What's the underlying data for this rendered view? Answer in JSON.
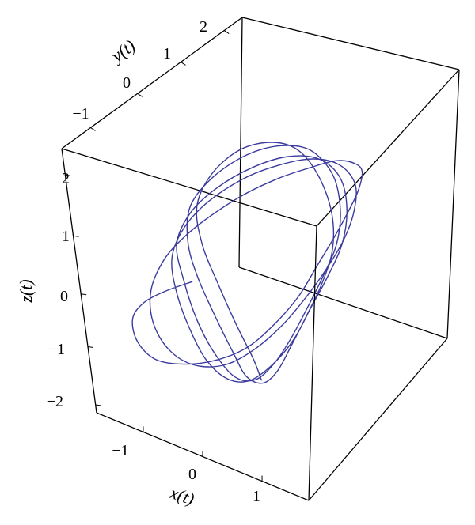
{
  "chart_data": {
    "type": "line",
    "projection": "3d",
    "title": "",
    "xlabel": "x(t)",
    "ylabel": "y(t)",
    "zlabel": "z(t)",
    "xlim": [
      -2,
      2
    ],
    "ylim": [
      -1.5,
      2.5
    ],
    "zlim": [
      -2.3,
      2.5
    ],
    "x_ticks": [
      "−1",
      "0",
      "1"
    ],
    "y_ticks": [
      "−1",
      "0",
      "1",
      "2"
    ],
    "z_ticks": [
      "−2",
      "−1",
      "0",
      "1",
      "2"
    ],
    "grid": false,
    "legend": "none",
    "series": [
      {
        "color": "#3b3b9e",
        "description_points": "chaotic attractor trajectory",
        "x": [
          -0.8,
          -1.2,
          -1.5,
          -1.6,
          -1.4,
          -1.0,
          -0.5,
          0.0,
          0.4,
          0.7,
          0.9,
          1.0,
          1.1,
          1.2,
          1.3,
          1.35,
          1.3,
          1.1,
          0.8,
          0.4,
          -0.1,
          -0.6,
          -1.0,
          -1.3,
          -1.4,
          -1.2,
          -0.8,
          -0.3,
          0.2,
          0.6,
          0.9,
          1.1,
          1.25,
          1.35,
          1.4,
          1.3,
          1.0,
          0.6,
          0.1,
          -0.4,
          -0.9,
          -1.2,
          -1.3,
          -1.1,
          -0.7,
          -0.2,
          0.3,
          0.7,
          1.0,
          1.2,
          1.3,
          1.4,
          1.45,
          1.35,
          1.1,
          0.7,
          0.2,
          -0.3,
          -0.8,
          -1.15,
          -1.25,
          -1.0,
          -0.6,
          -0.1,
          0.4,
          0.8,
          1.05,
          1.2,
          1.3,
          1.38,
          1.42,
          1.3,
          1.0,
          0.5,
          0.0,
          -0.5,
          -0.95,
          -1.2,
          -1.1,
          -0.8,
          -0.3,
          0.2,
          0.6,
          0.95,
          1.15,
          1.25,
          1.35,
          1.42,
          1.4,
          1.2,
          0.8,
          0.3,
          -0.2,
          -0.7,
          -1.05,
          -1.15,
          -0.9,
          -0.5,
          0.0,
          0.5,
          0.85
        ],
        "y": [
          -0.2,
          -0.4,
          -0.6,
          -0.8,
          -1.0,
          -1.1,
          -1.0,
          -0.8,
          -0.5,
          -0.1,
          0.3,
          0.7,
          1.1,
          1.4,
          1.6,
          1.7,
          1.6,
          1.4,
          1.1,
          0.8,
          0.5,
          0.2,
          0.0,
          -0.2,
          -0.5,
          -0.8,
          -1.0,
          -1.05,
          -0.9,
          -0.6,
          -0.2,
          0.2,
          0.6,
          1.0,
          1.3,
          1.55,
          1.6,
          1.45,
          1.2,
          0.9,
          0.55,
          0.25,
          0.0,
          -0.25,
          -0.55,
          -0.85,
          -1.0,
          -0.95,
          -0.7,
          -0.35,
          0.05,
          0.45,
          0.85,
          1.2,
          1.45,
          1.5,
          1.35,
          1.05,
          0.7,
          0.4,
          0.1,
          -0.15,
          -0.45,
          -0.75,
          -0.95,
          -0.95,
          -0.75,
          -0.45,
          -0.05,
          0.35,
          0.75,
          1.1,
          1.4,
          1.55,
          1.45,
          1.2,
          0.85,
          0.5,
          0.2,
          -0.05,
          -0.35,
          -0.65,
          -0.9,
          -0.95,
          -0.8,
          -0.5,
          -0.15,
          0.25,
          0.65,
          1.0,
          1.3,
          1.5,
          1.5,
          1.3,
          0.95,
          0.6,
          0.3,
          0.05,
          -0.25,
          -0.55,
          -0.85
        ],
        "z": [
          -0.3,
          -0.5,
          -0.7,
          -0.9,
          -1.1,
          -1.2,
          -1.15,
          -1.0,
          -0.8,
          -0.5,
          -0.2,
          0.1,
          0.4,
          0.7,
          1.0,
          1.3,
          1.5,
          1.6,
          1.55,
          1.4,
          1.1,
          0.7,
          0.3,
          -0.1,
          -0.5,
          -0.8,
          -1.0,
          -1.05,
          -0.95,
          -0.7,
          -0.4,
          -0.1,
          0.2,
          0.5,
          0.85,
          1.15,
          1.35,
          1.4,
          1.25,
          1.0,
          0.6,
          0.2,
          -0.2,
          -0.55,
          -0.85,
          -1.05,
          -1.1,
          -1.0,
          -0.75,
          -0.45,
          -0.1,
          0.25,
          0.6,
          0.95,
          1.25,
          1.4,
          1.35,
          1.15,
          0.8,
          0.4,
          0.0,
          -0.4,
          -0.75,
          -0.95,
          -1.05,
          -0.95,
          -0.7,
          -0.4,
          -0.05,
          0.3,
          0.65,
          1.0,
          1.3,
          1.45,
          1.4,
          1.2,
          0.85,
          0.45,
          0.05,
          -0.3,
          -0.65,
          -0.9,
          -1.0,
          -0.95,
          -0.75,
          -0.45,
          -0.1,
          0.25,
          0.6,
          0.95,
          1.25,
          1.4,
          1.35,
          1.15,
          0.8,
          0.4,
          0.0,
          -0.35,
          -0.7,
          -0.95,
          -1.0
        ]
      }
    ]
  }
}
